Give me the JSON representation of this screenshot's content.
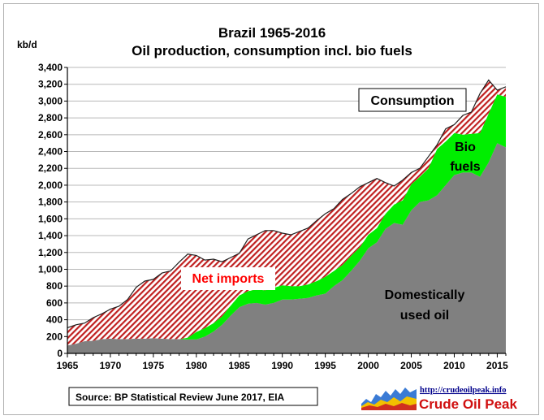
{
  "chart_data": {
    "type": "area",
    "title": "Brazil 1965-2016",
    "subtitle": "Oil production, consumption  incl. bio fuels",
    "ylabel": "kb/d",
    "xlim": [
      1965,
      2016
    ],
    "ylim": [
      0,
      3400
    ],
    "x_ticks": [
      1965,
      1970,
      1975,
      1980,
      1985,
      1990,
      1995,
      2000,
      2005,
      2010,
      2015
    ],
    "y_ticks": [
      "0",
      "200",
      "400",
      "600",
      "800",
      "1,000",
      "1,200",
      "1,400",
      "1,600",
      "1,800",
      "2,000",
      "2,200",
      "2,400",
      "2,600",
      "2,800",
      "3,000",
      "3,200",
      "3,400"
    ],
    "grid": true,
    "years": [
      1965,
      1966,
      1967,
      1968,
      1969,
      1970,
      1971,
      1972,
      1973,
      1974,
      1975,
      1976,
      1977,
      1978,
      1979,
      1980,
      1981,
      1982,
      1983,
      1984,
      1985,
      1986,
      1987,
      1988,
      1989,
      1990,
      1991,
      1992,
      1993,
      1994,
      1995,
      1996,
      1997,
      1998,
      1999,
      2000,
      2001,
      2002,
      2003,
      2004,
      2005,
      2006,
      2007,
      2008,
      2009,
      2010,
      2011,
      2012,
      2013,
      2014,
      2015,
      2016
    ],
    "series": [
      {
        "name": "Domestically used oil",
        "color": "#808080",
        "values": [
          95,
          115,
          145,
          150,
          170,
          175,
          170,
          170,
          175,
          175,
          180,
          175,
          170,
          170,
          165,
          165,
          200,
          260,
          340,
          450,
          550,
          590,
          600,
          580,
          600,
          640,
          640,
          650,
          660,
          690,
          710,
          800,
          870,
          980,
          1100,
          1250,
          1320,
          1480,
          1550,
          1530,
          1700,
          1800,
          1820,
          1880,
          2000,
          2120,
          2150,
          2150,
          2100,
          2270,
          2500,
          2450
        ]
      },
      {
        "name": "Bio fuels",
        "color": "#00ee00",
        "values": [
          0,
          0,
          0,
          0,
          0,
          0,
          0,
          0,
          0,
          0,
          0,
          0,
          0,
          0,
          20,
          90,
          100,
          100,
          100,
          120,
          140,
          150,
          160,
          170,
          180,
          170,
          160,
          150,
          160,
          170,
          200,
          180,
          180,
          180,
          160,
          160,
          170,
          180,
          220,
          290,
          310,
          300,
          380,
          550,
          520,
          500,
          450,
          460,
          520,
          580,
          580,
          600
        ]
      },
      {
        "name": "Net imports",
        "color": "#c02020",
        "values": [
          210,
          225,
          215,
          275,
          300,
          350,
          390,
          470,
          610,
          685,
          700,
          780,
          810,
          915,
          995,
          910,
          810,
          760,
          650,
          570,
          500,
          620,
          650,
          710,
          680,
          620,
          610,
          650,
          670,
          720,
          750,
          740,
          780,
          740,
          720,
          620,
          590,
          370,
          220,
          240,
          140,
          100,
          140,
          50,
          150,
          100,
          230,
          260,
          470,
          400,
          50,
          120
        ]
      }
    ],
    "annotations": [
      "Consumption",
      "Bio",
      "fuels",
      "Net imports",
      "Domestically",
      "used oil"
    ],
    "source": "Source: BP Statistical Review  June 2017, EIA",
    "logo": {
      "url_text": "http://crudeoilpeak.info",
      "name": "Crude Oil Peak"
    }
  }
}
